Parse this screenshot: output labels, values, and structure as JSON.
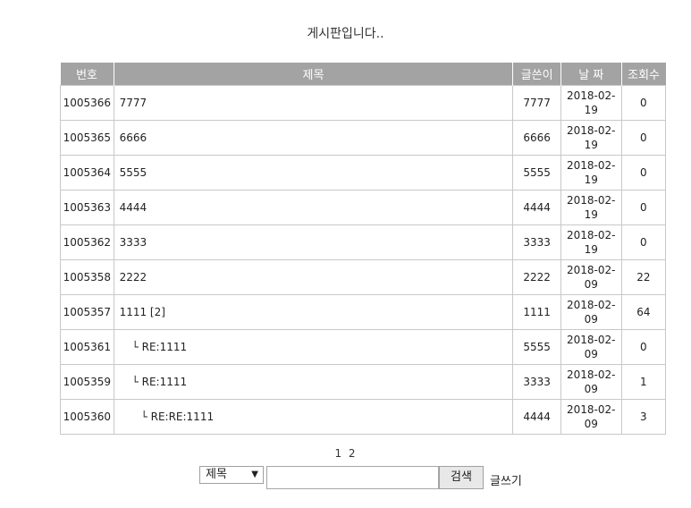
{
  "caption": "게시판입니다..",
  "columns": {
    "no": "번호",
    "title": "제목",
    "writer": "글쓴이",
    "date": "날 짜",
    "hits": "조회수"
  },
  "rows": [
    {
      "no": "1005366",
      "title": "7777",
      "writer": "7777",
      "date1": "2018-02-",
      "date2": "19",
      "hits": "0",
      "depth": 0
    },
    {
      "no": "1005365",
      "title": "6666",
      "writer": "6666",
      "date1": "2018-02-",
      "date2": "19",
      "hits": "0",
      "depth": 0
    },
    {
      "no": "1005364",
      "title": "5555",
      "writer": "5555",
      "date1": "2018-02-",
      "date2": "19",
      "hits": "0",
      "depth": 0
    },
    {
      "no": "1005363",
      "title": "4444",
      "writer": "4444",
      "date1": "2018-02-",
      "date2": "19",
      "hits": "0",
      "depth": 0
    },
    {
      "no": "1005362",
      "title": "3333",
      "writer": "3333",
      "date1": "2018-02-",
      "date2": "19",
      "hits": "0",
      "depth": 0
    },
    {
      "no": "1005358",
      "title": "2222",
      "writer": "2222",
      "date1": "2018-02-",
      "date2": "09",
      "hits": "22",
      "depth": 0
    },
    {
      "no": "1005357",
      "title": "1111 [2]",
      "writer": "1111",
      "date1": "2018-02-",
      "date2": "09",
      "hits": "64",
      "depth": 0
    },
    {
      "no": "1005361",
      "title": "└ RE:1111",
      "writer": "5555",
      "date1": "2018-02-",
      "date2": "09",
      "hits": "0",
      "depth": 1
    },
    {
      "no": "1005359",
      "title": "└ RE:1111",
      "writer": "3333",
      "date1": "2018-02-",
      "date2": "09",
      "hits": "1",
      "depth": 1
    },
    {
      "no": "1005360",
      "title": "└ RE:RE:1111",
      "writer": "4444",
      "date1": "2018-02-",
      "date2": "09",
      "hits": "3",
      "depth": 2
    }
  ],
  "pager": {
    "pages": [
      "1",
      "2"
    ]
  },
  "search": {
    "field_selected": "제목",
    "keyword": "",
    "button": "검색",
    "write_link": "글쓰기"
  }
}
